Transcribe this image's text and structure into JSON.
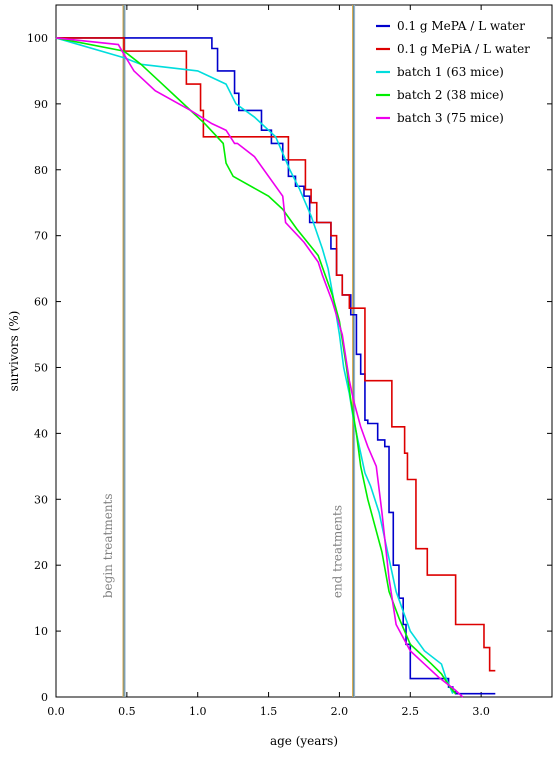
{
  "chart_data": {
    "type": "line",
    "title": "",
    "xlabel": "age (years)",
    "ylabel": "survivors (%)",
    "xlim": [
      0,
      3.5
    ],
    "ylim": [
      0,
      105
    ],
    "grid": false,
    "legend_position": "top-right",
    "x_ticks": [
      0,
      0.5,
      1,
      1.5,
      2,
      2.5,
      3
    ],
    "x_tick_labels": [
      "0.0",
      "0.5",
      "1.0",
      "1.5",
      "2.0",
      "2.5",
      "3.0"
    ],
    "y_ticks": [
      0,
      10,
      20,
      30,
      40,
      50,
      60,
      70,
      80,
      90,
      100
    ],
    "y_tick_labels": [
      "0",
      "10",
      "20",
      "30",
      "40",
      "50",
      "60",
      "70",
      "80",
      "90",
      "100"
    ],
    "annotations": [
      {
        "text": "begin treatments",
        "x": 0.48
      },
      {
        "text": "end treatments",
        "x": 2.1
      }
    ],
    "series": [
      {
        "name": "0.1 g MePA / L water",
        "color": "#0000cc",
        "step": true,
        "x": [
          0,
          1.04,
          1.1,
          1.14,
          1.26,
          1.29,
          1.34,
          1.45,
          1.52,
          1.6,
          1.64,
          1.69,
          1.75,
          1.79,
          1.82,
          1.94,
          1.98,
          2.02,
          2.08,
          2.12,
          2.15,
          2.18,
          2.2,
          2.27,
          2.32,
          2.35,
          2.38,
          2.42,
          2.45,
          2.47,
          2.5,
          2.72,
          2.77,
          2.8,
          2.82,
          3.1
        ],
        "y": [
          100,
          100,
          98.4,
          95,
          91.6,
          89,
          89,
          86,
          84,
          81.5,
          79,
          77.5,
          76,
          72,
          72,
          68,
          64,
          61,
          58,
          52,
          49,
          42,
          41.5,
          39,
          38,
          28,
          20,
          15,
          11,
          8,
          2.8,
          2.8,
          1.5,
          0.8,
          0.5,
          0.5
        ]
      },
      {
        "name": "0.1 g MePiA / L water",
        "color": "#dd0000",
        "step": true,
        "x": [
          0,
          0.48,
          0.92,
          1.02,
          1.04,
          1.62,
          1.64,
          1.72,
          1.76,
          1.8,
          1.84,
          1.94,
          1.98,
          2.02,
          2.07,
          2.12,
          2.18,
          2.2,
          2.32,
          2.37,
          2.43,
          2.46,
          2.48,
          2.51,
          2.54,
          2.62,
          2.78,
          2.82,
          3.02,
          3.06,
          3.1
        ],
        "y": [
          100,
          98,
          93,
          89,
          85,
          85,
          81.5,
          81.5,
          77,
          75,
          72,
          70,
          64,
          61,
          59,
          59,
          48,
          48,
          48,
          41,
          41,
          37,
          33,
          33,
          22.5,
          18.5,
          18.5,
          11,
          7.5,
          4,
          4
        ]
      },
      {
        "name": "batch 1 (63 mice)",
        "color": "#00dddd",
        "step": false,
        "x": [
          0,
          0.48,
          0.6,
          1.0,
          1.1,
          1.2,
          1.27,
          1.4,
          1.55,
          1.65,
          1.72,
          1.8,
          1.88,
          1.92,
          1.97,
          2.0,
          2.03,
          2.07,
          2.1,
          2.14,
          2.18,
          2.22,
          2.28,
          2.34,
          2.4,
          2.5,
          2.6,
          2.72,
          2.75,
          2.8
        ],
        "y": [
          100,
          97,
          96,
          95,
          94,
          93,
          90,
          88,
          85,
          80,
          77,
          73,
          68,
          65,
          59,
          55,
          50,
          46,
          42,
          38,
          34,
          32,
          28,
          22,
          16,
          10,
          7,
          5,
          3,
          0.5
        ]
      },
      {
        "name": "batch 2 (38 mice)",
        "color": "#00ee00",
        "step": false,
        "x": [
          0,
          0.48,
          0.6,
          0.75,
          0.9,
          1.05,
          1.18,
          1.2,
          1.25,
          1.5,
          1.6,
          1.7,
          1.85,
          1.95,
          2.0,
          2.05,
          2.08,
          2.12,
          2.15,
          2.2,
          2.25,
          2.3,
          2.35,
          2.42,
          2.5,
          2.55,
          2.65,
          2.72,
          2.78,
          2.82
        ],
        "y": [
          100,
          98,
          96,
          93,
          90,
          87,
          84,
          81,
          79,
          76,
          74,
          71,
          67,
          61,
          57,
          50,
          45,
          40,
          35,
          30,
          26,
          22,
          16,
          12,
          8,
          7,
          5,
          3.5,
          1.5,
          0.5
        ]
      },
      {
        "name": "batch 3 (75 mice)",
        "color": "#ee00ee",
        "step": false,
        "x": [
          0,
          0.44,
          0.48,
          0.55,
          0.7,
          0.95,
          1.1,
          1.2,
          1.26,
          1.28,
          1.4,
          1.6,
          1.62,
          1.75,
          1.85,
          1.88,
          1.95,
          2.02,
          2.07,
          2.1,
          2.15,
          2.2,
          2.26,
          2.3,
          2.35,
          2.4,
          2.45,
          2.5,
          2.6,
          2.7,
          2.82,
          2.87
        ],
        "y": [
          100,
          99,
          97.5,
          95,
          92,
          89,
          87,
          86,
          84,
          84,
          82,
          76,
          72,
          69,
          66,
          64,
          60,
          55,
          48,
          45,
          41,
          38,
          35,
          28,
          18,
          11,
          9,
          7,
          5,
          3,
          1,
          0
        ]
      }
    ]
  }
}
